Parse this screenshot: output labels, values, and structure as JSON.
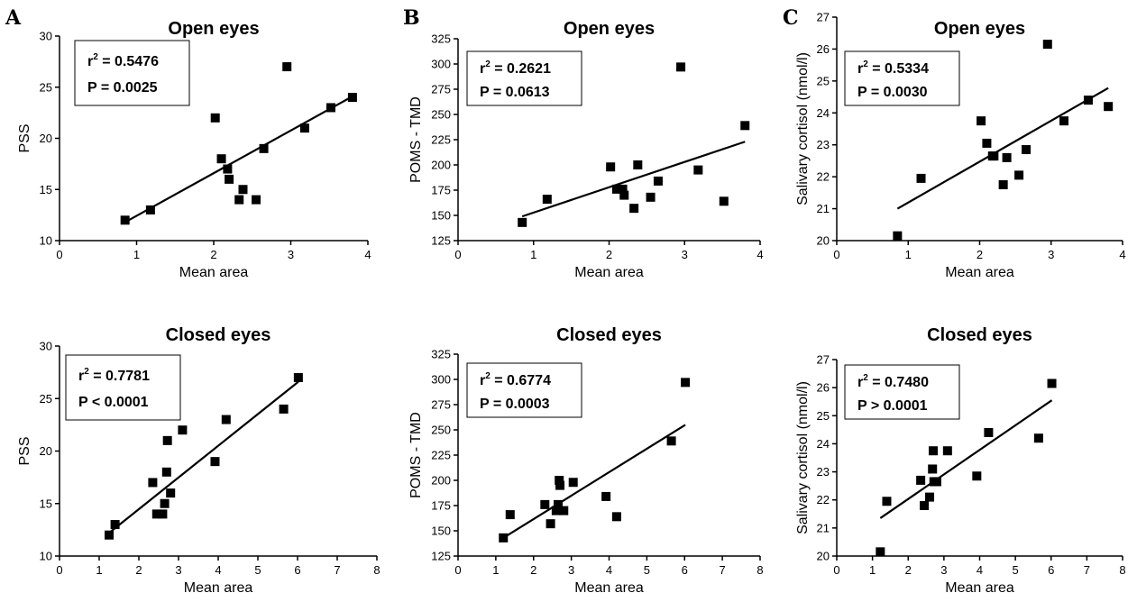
{
  "panel_letters": [
    "A",
    "B",
    "C"
  ],
  "chart_data": [
    {
      "type": "scatter",
      "panel": "A",
      "title": "Open eyes",
      "xlabel": "Mean area",
      "ylabel": "PSS",
      "xlim": [
        0,
        4
      ],
      "ylim": [
        10,
        30
      ],
      "xticks": [
        0,
        1,
        2,
        3,
        4
      ],
      "yticks": [
        10,
        15,
        20,
        25,
        30
      ],
      "points": [
        [
          0.85,
          12
        ],
        [
          1.18,
          13
        ],
        [
          2.02,
          22
        ],
        [
          2.1,
          18
        ],
        [
          2.18,
          17
        ],
        [
          2.2,
          16
        ],
        [
          2.33,
          14
        ],
        [
          2.38,
          15
        ],
        [
          2.55,
          14
        ],
        [
          2.65,
          19
        ],
        [
          2.95,
          27
        ],
        [
          3.18,
          21
        ],
        [
          3.52,
          23
        ],
        [
          3.8,
          24
        ]
      ],
      "fit_line": [
        [
          0.85,
          11.8
        ],
        [
          3.8,
          24.1
        ]
      ],
      "stats": {
        "r2": "= 0.5476",
        "p": "P  = 0.0025"
      }
    },
    {
      "type": "scatter",
      "panel": "B",
      "title": "Open eyes",
      "xlabel": "Mean area",
      "ylabel": "POMS - TMD",
      "xlim": [
        0,
        4
      ],
      "ylim": [
        125,
        325
      ],
      "xticks": [
        0,
        1,
        2,
        3,
        4
      ],
      "yticks": [
        125,
        150,
        175,
        200,
        225,
        250,
        275,
        300,
        325
      ],
      "points": [
        [
          0.85,
          143
        ],
        [
          1.18,
          166
        ],
        [
          2.02,
          198
        ],
        [
          2.1,
          176
        ],
        [
          2.18,
          176
        ],
        [
          2.2,
          170
        ],
        [
          2.33,
          157
        ],
        [
          2.38,
          200
        ],
        [
          2.55,
          168
        ],
        [
          2.65,
          184
        ],
        [
          2.95,
          297
        ],
        [
          3.18,
          195
        ],
        [
          3.52,
          164
        ],
        [
          3.8,
          239
        ]
      ],
      "fit_line": [
        [
          0.85,
          149
        ],
        [
          3.8,
          223
        ]
      ],
      "stats": {
        "r2": "= 0.2621",
        "p": "P  = 0.0613"
      }
    },
    {
      "type": "scatter",
      "panel": "C",
      "title": "Open eyes",
      "xlabel": "Mean area",
      "ylabel": "Salivary cortisol (nmol/l)",
      "xlim": [
        0,
        4
      ],
      "ylim": [
        20,
        27
      ],
      "xticks": [
        0,
        1,
        2,
        3,
        4
      ],
      "yticks": [
        20,
        21,
        22,
        23,
        24,
        25,
        26,
        27
      ],
      "points": [
        [
          0.85,
          20.15
        ],
        [
          1.18,
          21.95
        ],
        [
          2.02,
          23.75
        ],
        [
          2.1,
          23.05
        ],
        [
          2.18,
          22.65
        ],
        [
          2.2,
          22.65
        ],
        [
          2.33,
          21.75
        ],
        [
          2.38,
          22.6
        ],
        [
          2.55,
          22.05
        ],
        [
          2.65,
          22.85
        ],
        [
          2.95,
          26.15
        ],
        [
          3.18,
          23.75
        ],
        [
          3.52,
          24.4
        ],
        [
          3.8,
          24.2
        ]
      ],
      "fit_line": [
        [
          0.85,
          21.0
        ],
        [
          3.8,
          24.78
        ]
      ],
      "stats": {
        "r2": "= 0.5334",
        "p": "P  = 0.0030"
      }
    },
    {
      "type": "scatter",
      "panel": "A",
      "title": "Closed eyes",
      "xlabel": "Mean area",
      "ylabel": "PSS",
      "xlim": [
        0,
        8
      ],
      "ylim": [
        10,
        30
      ],
      "xticks": [
        0,
        1,
        2,
        3,
        4,
        5,
        6,
        7,
        8
      ],
      "yticks": [
        10,
        15,
        20,
        25,
        30
      ],
      "points": [
        [
          1.25,
          12
        ],
        [
          1.4,
          13
        ],
        [
          2.35,
          17
        ],
        [
          2.45,
          14
        ],
        [
          2.6,
          14
        ],
        [
          2.65,
          15
        ],
        [
          2.7,
          18
        ],
        [
          2.72,
          21
        ],
        [
          2.8,
          16
        ],
        [
          3.1,
          22
        ],
        [
          3.92,
          19
        ],
        [
          4.2,
          23
        ],
        [
          5.65,
          24
        ],
        [
          6.02,
          27
        ]
      ],
      "fit_line": [
        [
          1.25,
          12.2
        ],
        [
          6.02,
          26.6
        ]
      ],
      "stats": {
        "r2": "= 0.7781",
        "p": "P  < 0.0001"
      }
    },
    {
      "type": "scatter",
      "panel": "B",
      "title": "Closed eyes",
      "xlabel": "Mean area",
      "ylabel": "POMS - TMD",
      "xlim": [
        0,
        8
      ],
      "ylim": [
        125,
        325
      ],
      "xticks": [
        0,
        1,
        2,
        3,
        4,
        5,
        6,
        7,
        8
      ],
      "yticks": [
        125,
        150,
        175,
        200,
        225,
        250,
        275,
        300,
        325
      ],
      "points": [
        [
          1.2,
          143
        ],
        [
          1.38,
          166
        ],
        [
          2.3,
          176
        ],
        [
          2.45,
          157
        ],
        [
          2.6,
          170
        ],
        [
          2.65,
          176
        ],
        [
          2.68,
          200
        ],
        [
          2.7,
          195
        ],
        [
          2.8,
          170
        ],
        [
          3.05,
          198
        ],
        [
          3.92,
          184
        ],
        [
          4.2,
          164
        ],
        [
          5.65,
          239
        ],
        [
          6.02,
          297
        ]
      ],
      "fit_line": [
        [
          1.2,
          143
        ],
        [
          6.02,
          255
        ]
      ],
      "stats": {
        "r2": "= 0.6774",
        "p": "P  = 0.0003"
      }
    },
    {
      "type": "scatter",
      "panel": "C",
      "title": "Closed eyes",
      "xlabel": "Mean area",
      "ylabel": "Salivary cortisol (nmol/l)",
      "xlim": [
        0,
        8
      ],
      "ylim": [
        20,
        27
      ],
      "xticks": [
        0,
        1,
        2,
        3,
        4,
        5,
        6,
        7,
        8
      ],
      "yticks": [
        20,
        21,
        22,
        23,
        24,
        25,
        26,
        27
      ],
      "points": [
        [
          1.22,
          20.15
        ],
        [
          1.4,
          21.95
        ],
        [
          2.35,
          22.7
        ],
        [
          2.45,
          21.8
        ],
        [
          2.6,
          22.1
        ],
        [
          2.68,
          23.1
        ],
        [
          2.7,
          23.75
        ],
        [
          2.72,
          22.65
        ],
        [
          2.8,
          22.65
        ],
        [
          3.1,
          23.75
        ],
        [
          3.92,
          22.85
        ],
        [
          4.25,
          24.4
        ],
        [
          5.65,
          24.2
        ],
        [
          6.02,
          26.15
        ]
      ],
      "fit_line": [
        [
          1.22,
          21.35
        ],
        [
          6.02,
          25.55
        ]
      ],
      "stats": {
        "r2": "= 0.7480",
        "p": "P  > 0.0001"
      }
    }
  ]
}
